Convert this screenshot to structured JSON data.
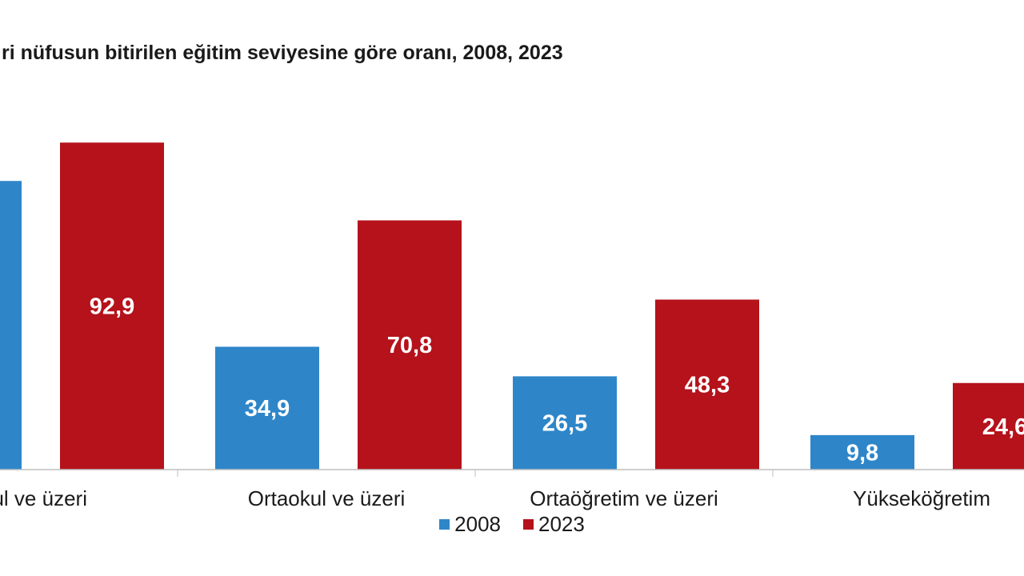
{
  "chart_data": {
    "type": "bar",
    "title": "ri nüfusun bitirilen eğitim seviyesine göre oranı, 2008, 2023",
    "categories": [
      "okul ve üzeri",
      "Ortaokul ve üzeri",
      "Ortaöğretim ve üzeri",
      "Yükseköğretim"
    ],
    "series": [
      {
        "name": "2008",
        "color": "#2e86c9",
        "values": [
          82.0,
          34.9,
          26.5,
          9.8
        ],
        "labels": [
          "",
          "34,9",
          "26,5",
          "9,8"
        ]
      },
      {
        "name": "2023",
        "color": "#b5121b",
        "values": [
          92.9,
          70.8,
          48.3,
          24.6
        ],
        "labels": [
          "92,9",
          "70,8",
          "48,3",
          "24,6"
        ]
      }
    ],
    "ylim": [
      0,
      100
    ],
    "grid": false,
    "legend": "bottom"
  }
}
